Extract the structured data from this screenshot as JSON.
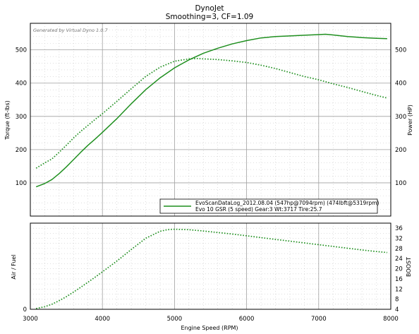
{
  "page": {
    "title": "DynoJet",
    "subtitle": "Smoothing=3, CF=1.09",
    "watermark": "Generated by Virtual Dyno 1.0.7"
  },
  "legend": {
    "line1": "EvoScanDataLog_2012.08.04 (547hp@7094rpm) (474lbft@5319rpm)",
    "line2": "Evo 10 GSR (5 speed) Gear:3 Wt:3717 Tire:25.7"
  },
  "colors": {
    "series": "#1f8f1f",
    "grid_major": "#a0a0a0",
    "grid_dots": "#a6a6a6",
    "axis": "#000000"
  },
  "chart_data": [
    {
      "type": "line",
      "panel": "top",
      "xlabel": "",
      "ylabel": "Torque (ft-lbs)",
      "ylabel_right": "Power (HP)",
      "xlim": [
        3000,
        8000
      ],
      "ylim": [
        0,
        580
      ],
      "y_ticks": [
        "100",
        "200",
        "300",
        "400",
        "500"
      ],
      "y_ticks_right": [
        "100",
        "200",
        "300",
        "400",
        "500"
      ],
      "grid": true,
      "legend_position": "bottom-right",
      "series": [
        {
          "name": "",
          "style": "solid",
          "x": [
            3080,
            3200,
            3300,
            3400,
            3500,
            3600,
            3700,
            3800,
            3900,
            4000,
            4200,
            4400,
            4600,
            4800,
            5000,
            5200,
            5400,
            5600,
            5800,
            6000,
            6200,
            6400,
            6600,
            6800,
            7000,
            7094,
            7200,
            7400,
            7600,
            7800,
            7950
          ],
          "y": [
            88,
            98,
            110,
            128,
            148,
            170,
            192,
            213,
            232,
            252,
            293,
            338,
            380,
            416,
            446,
            470,
            490,
            505,
            518,
            528,
            536,
            540,
            542,
            544,
            546,
            547,
            545,
            540,
            537,
            535,
            534
          ]
        },
        {
          "name": "",
          "style": "dotted",
          "x": [
            3080,
            3200,
            3300,
            3400,
            3500,
            3600,
            3700,
            3800,
            3900,
            4000,
            4200,
            4400,
            4600,
            4800,
            5000,
            5200,
            5319,
            5400,
            5600,
            5800,
            6000,
            6200,
            6400,
            6600,
            6800,
            7000,
            7200,
            7400,
            7600,
            7800,
            7950
          ],
          "y": [
            144,
            160,
            172,
            192,
            213,
            235,
            255,
            273,
            291,
            308,
            345,
            383,
            420,
            448,
            466,
            473,
            474,
            473,
            471,
            467,
            462,
            454,
            444,
            432,
            420,
            410,
            398,
            387,
            375,
            363,
            355
          ]
        }
      ]
    },
    {
      "type": "line",
      "panel": "bottom",
      "xlabel": "Engine Speed (RPM)",
      "ylabel": "Air / Fuel",
      "ylabel_right": "BOOST",
      "xlim": [
        3000,
        8000
      ],
      "x_ticks": [
        "3000",
        "4000",
        "5000",
        "6000",
        "7000",
        "8000"
      ],
      "ylim": [
        4,
        38
      ],
      "y_ticks_left": [
        "0"
      ],
      "y_ticks_right": [
        "4",
        "8",
        "12",
        "16",
        "20",
        "24",
        "28",
        "32",
        "36"
      ],
      "grid": true,
      "series": [
        {
          "name": "",
          "style": "dotted",
          "axis": "right",
          "x": [
            3080,
            3200,
            3300,
            3400,
            3500,
            3600,
            3700,
            3800,
            3900,
            4000,
            4200,
            4400,
            4600,
            4800,
            4900,
            5000,
            5200,
            5400,
            5600,
            5800,
            6000,
            6200,
            6400,
            6600,
            6800,
            7000,
            7200,
            7400,
            7600,
            7800,
            7950
          ],
          "y": [
            4.3,
            5.0,
            6.0,
            7.4,
            9.0,
            10.8,
            12.7,
            14.7,
            16.7,
            18.8,
            23.0,
            27.6,
            32.0,
            34.8,
            35.4,
            35.6,
            35.4,
            34.9,
            34.3,
            33.7,
            33.0,
            32.3,
            31.6,
            30.9,
            30.2,
            29.5,
            28.8,
            28.1,
            27.4,
            26.8,
            26.4
          ]
        }
      ]
    }
  ]
}
